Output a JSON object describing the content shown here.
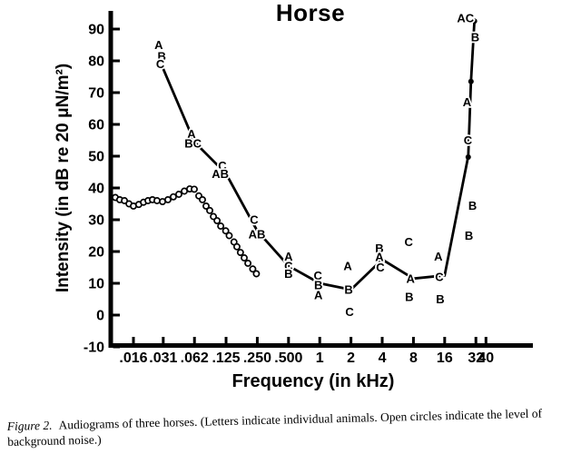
{
  "chart_data": {
    "type": "line",
    "title": "Horse",
    "xlabel": "Frequency (in kHz)",
    "ylabel": "Intensity (in dB re 20 μN/m²)",
    "x_scale": "log2",
    "xlim_khz": [
      0.016,
      40
    ],
    "ylim": [
      -10,
      95
    ],
    "grid": false,
    "y_ticks": [
      90,
      80,
      70,
      60,
      50,
      40,
      30,
      20,
      10,
      0,
      -10
    ],
    "x_ticks": [
      {
        "label": ".016",
        "f": 0.016
      },
      {
        "label": ".031",
        "f": 0.031
      },
      {
        "label": ".062",
        "f": 0.062
      },
      {
        "label": ".125",
        "f": 0.125
      },
      {
        "label": ".250",
        "f": 0.25
      },
      {
        "label": ".500",
        "f": 0.5
      },
      {
        "label": "1",
        "f": 1
      },
      {
        "label": "2",
        "f": 2
      },
      {
        "label": "4",
        "f": 4
      },
      {
        "label": "8",
        "f": 8
      },
      {
        "label": "16",
        "f": 16
      },
      {
        "label": "32",
        "f": 32
      },
      {
        "label": "40",
        "f": 40
      }
    ],
    "threshold_curve": [
      [
        0.031,
        77.5
      ],
      [
        0.062,
        54.5
      ],
      [
        0.125,
        44.5
      ],
      [
        0.25,
        26.5
      ],
      [
        0.5,
        15.5
      ],
      [
        1,
        10
      ],
      [
        2,
        8
      ],
      [
        4,
        17.5
      ],
      [
        8,
        11.5
      ],
      [
        16,
        12.5
      ],
      [
        27,
        50
      ],
      [
        28.7,
        73.5
      ],
      [
        31,
        92.5
      ]
    ],
    "filled_dots": [
      [
        27,
        49.7
      ],
      [
        28.7,
        73.5
      ],
      [
        31,
        92.5
      ]
    ],
    "animal_letters": [
      {
        "t": "A",
        "f": 0.028,
        "dB": 85
      },
      {
        "t": "B",
        "f": 0.03,
        "dB": 81.5
      },
      {
        "t": "C",
        "f": 0.029,
        "dB": 79
      },
      {
        "t": "A",
        "f": 0.058,
        "dB": 57
      },
      {
        "t": "BC",
        "f": 0.06,
        "dB": 54
      },
      {
        "t": "C",
        "f": 0.115,
        "dB": 47
      },
      {
        "t": "AB",
        "f": 0.11,
        "dB": 44.5
      },
      {
        "t": "C",
        "f": 0.233,
        "dB": 30
      },
      {
        "t": "AB",
        "f": 0.248,
        "dB": 25.5
      },
      {
        "t": "A",
        "f": 0.5,
        "dB": 18.5
      },
      {
        "t": "C",
        "f": 0.5,
        "dB": 15.5
      },
      {
        "t": "B",
        "f": 0.5,
        "dB": 13
      },
      {
        "t": "C",
        "f": 0.96,
        "dB": 12.5
      },
      {
        "t": "B",
        "f": 0.97,
        "dB": 9.5
      },
      {
        "t": "A",
        "f": 0.97,
        "dB": 6.3
      },
      {
        "t": "A",
        "f": 1.86,
        "dB": 15.5
      },
      {
        "t": "B",
        "f": 1.9,
        "dB": 8
      },
      {
        "t": "C",
        "f": 1.94,
        "dB": 1
      },
      {
        "t": "B",
        "f": 3.76,
        "dB": 21
      },
      {
        "t": "A",
        "f": 3.76,
        "dB": 18.3
      },
      {
        "t": "C",
        "f": 3.84,
        "dB": 15
      },
      {
        "t": "C",
        "f": 7.2,
        "dB": 23
      },
      {
        "t": "A",
        "f": 7.5,
        "dB": 11.5
      },
      {
        "t": "B",
        "f": 7.3,
        "dB": 5.7
      },
      {
        "t": "A",
        "f": 13.9,
        "dB": 18.5
      },
      {
        "t": "C",
        "f": 14.2,
        "dB": 12
      },
      {
        "t": "B",
        "f": 14.5,
        "dB": 5
      },
      {
        "t": "B",
        "f": 29.7,
        "dB": 34.5
      },
      {
        "t": "B",
        "f": 27.4,
        "dB": 25
      },
      {
        "t": "C",
        "f": 26.8,
        "dB": 55
      },
      {
        "t": "A",
        "f": 26.3,
        "dB": 67
      },
      {
        "t": "B",
        "f": 31.5,
        "dB": 87.5
      },
      {
        "t": "AC",
        "f": 25.4,
        "dB": 93.5
      }
    ],
    "noise_circles": [
      [
        0.0107,
        37
      ],
      [
        0.0118,
        36.3
      ],
      [
        0.0131,
        36
      ],
      [
        0.0145,
        35
      ],
      [
        0.016,
        34.3
      ],
      [
        0.018,
        34.8
      ],
      [
        0.02,
        35.5
      ],
      [
        0.0221,
        36
      ],
      [
        0.0244,
        36.3
      ],
      [
        0.027,
        36
      ],
      [
        0.0305,
        35.7
      ],
      [
        0.0344,
        36.3
      ],
      [
        0.0388,
        37.2
      ],
      [
        0.0438,
        38
      ],
      [
        0.0495,
        39
      ],
      [
        0.0558,
        39.7
      ],
      [
        0.0617,
        39.6
      ],
      [
        0.0683,
        37.5
      ],
      [
        0.074,
        36.3
      ],
      [
        0.0802,
        34.3
      ],
      [
        0.087,
        32.9
      ],
      [
        0.0944,
        31
      ],
      [
        0.1024,
        29.7
      ],
      [
        0.111,
        28
      ],
      [
        0.124,
        26.5
      ],
      [
        0.134,
        25
      ],
      [
        0.149,
        23
      ],
      [
        0.159,
        21.5
      ],
      [
        0.172,
        19.7
      ],
      [
        0.187,
        18
      ],
      [
        0.203,
        16.3
      ],
      [
        0.226,
        14.5
      ],
      [
        0.245,
        13
      ]
    ],
    "legend": "Letters A, B, C mark individual animals; open circles mark background noise level"
  },
  "caption": {
    "label": "Figure 2.",
    "text": "Audiograms of three horses. (Letters indicate individual animals. Open circles indicate the level of background noise.)"
  }
}
